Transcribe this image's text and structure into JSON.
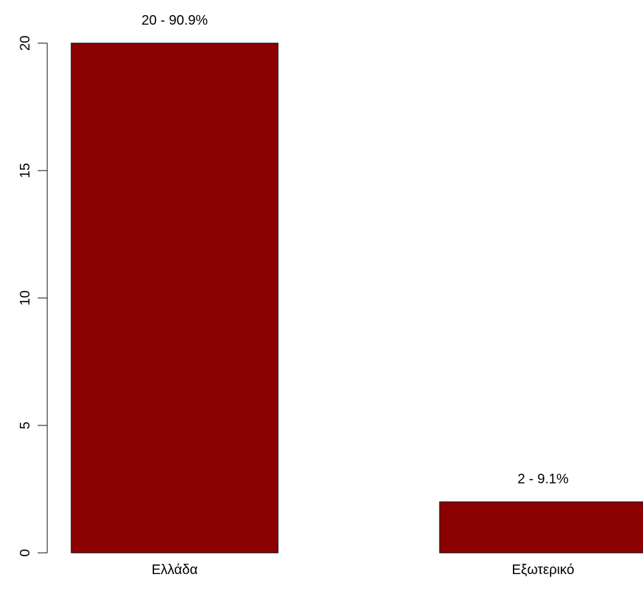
{
  "chart_data": {
    "type": "bar",
    "categories": [
      "Ελλάδα",
      "Εξωτερικό"
    ],
    "values": [
      20,
      2
    ],
    "data_labels": [
      "20 - 90.9%",
      "2 - 9.1%"
    ],
    "title": "",
    "xlabel": "",
    "ylabel": "",
    "ylim": [
      0,
      20
    ],
    "yticks": [
      0,
      5,
      10,
      15,
      20
    ],
    "grid": false,
    "legend": "none",
    "bar_color": "#8B0000",
    "bar_border_color": "#000000"
  }
}
